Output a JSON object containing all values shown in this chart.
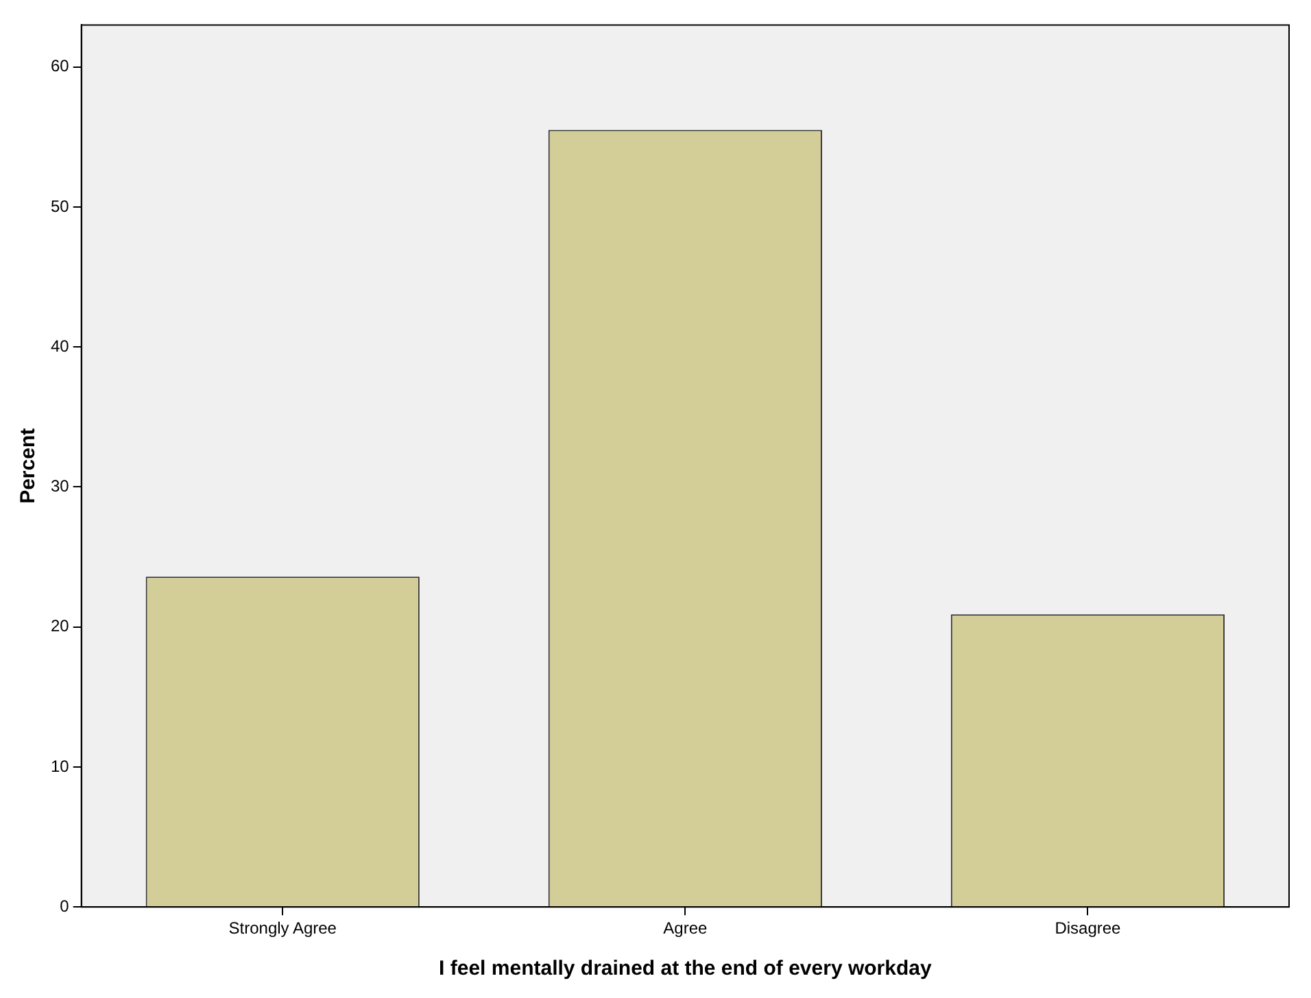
{
  "chart_data": {
    "type": "bar",
    "xlabel": "I feel mentally drained at the end of every workday",
    "ylabel": "Percent",
    "categories": [
      "Strongly Agree",
      "Agree",
      "Disagree"
    ],
    "values": [
      23.6,
      55.5,
      20.9
    ],
    "color": "#d3ce98",
    "ylim": [
      0,
      63
    ],
    "yticks": [
      0,
      10,
      20,
      30,
      40,
      50,
      60
    ]
  }
}
